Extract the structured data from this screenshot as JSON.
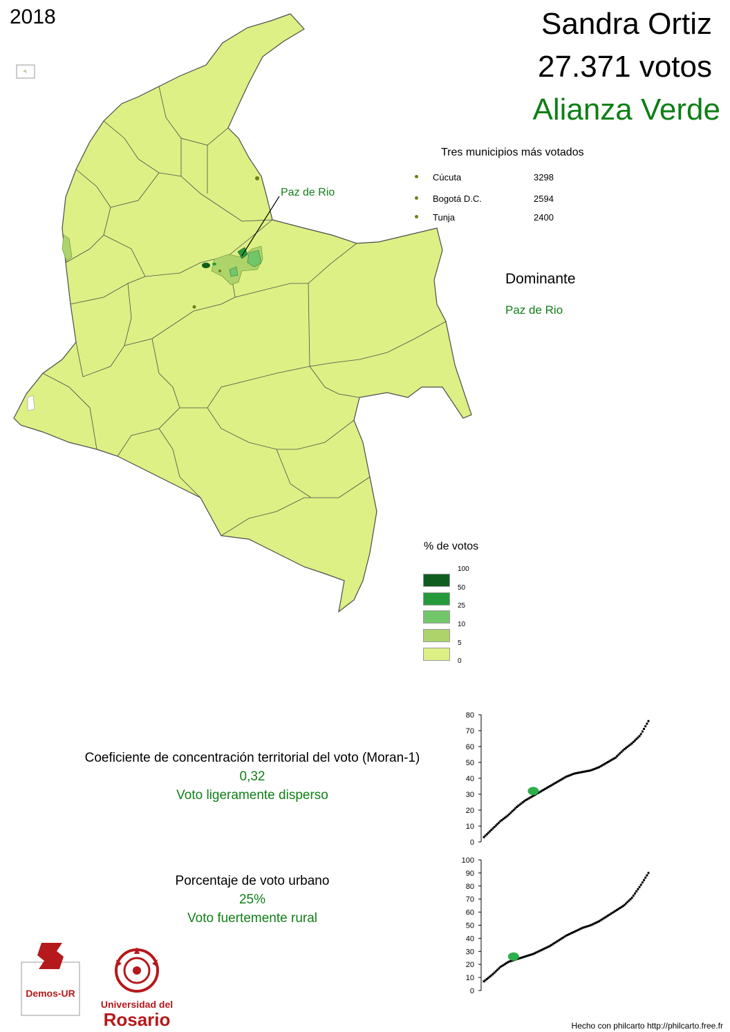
{
  "header": {
    "year": "2018",
    "candidate": "Sandra Ortiz",
    "votes": "27.371 votos",
    "party": "Alianza Verde",
    "party_color": "#0f7f16"
  },
  "top_municipalities": {
    "title": "Tres municipios más votados",
    "items": [
      {
        "name": "Cúcuta",
        "value": "3298"
      },
      {
        "name": "Bogotá D.C.",
        "value": "2594"
      },
      {
        "name": "Tunja",
        "value": "2400"
      }
    ]
  },
  "dominant": {
    "title": "Dominante",
    "value": "Paz de Rio"
  },
  "map": {
    "label": "Paz de Rio",
    "base_color": "#dcf085"
  },
  "legend": {
    "title": "% de votos",
    "ticks": [
      "100",
      "50",
      "25",
      "10",
      "5",
      "0"
    ],
    "colors": [
      "#0f5e1f",
      "#259a3a",
      "#72c66a",
      "#acd46a",
      "#dcf085"
    ]
  },
  "moran": {
    "label": "Coeficiente de concentración territorial del voto (Moran-1)",
    "value": "0,32",
    "interpretation": "Voto ligeramente disperso"
  },
  "urban": {
    "label": "Porcentaje de voto urbano",
    "value": "25%",
    "interpretation": "Voto fuertemente rural"
  },
  "chart_data": [
    {
      "type": "scatter",
      "ylim": [
        0,
        80
      ],
      "yticks": [
        "0",
        "10",
        "20",
        "30",
        "40",
        "50",
        "60",
        "70",
        "80"
      ],
      "x": [
        0,
        0.05,
        0.1,
        0.15,
        0.2,
        0.25,
        0.3,
        0.35,
        0.4,
        0.45,
        0.5,
        0.55,
        0.6,
        0.65,
        0.7,
        0.75,
        0.8,
        0.85,
        0.9,
        0.95,
        1.0
      ],
      "y": [
        3,
        8,
        13,
        17,
        22,
        26,
        29,
        32,
        35,
        38,
        41,
        43,
        44,
        45,
        47,
        50,
        53,
        58,
        62,
        67,
        76
      ],
      "highlight": {
        "x": 0.3,
        "y": 32
      }
    },
    {
      "type": "scatter",
      "ylim": [
        0,
        100
      ],
      "yticks": [
        "0",
        "10",
        "20",
        "30",
        "40",
        "50",
        "60",
        "70",
        "80",
        "90",
        "100"
      ],
      "x": [
        0,
        0.05,
        0.1,
        0.15,
        0.2,
        0.25,
        0.3,
        0.35,
        0.4,
        0.45,
        0.5,
        0.55,
        0.6,
        0.65,
        0.7,
        0.75,
        0.8,
        0.85,
        0.9,
        0.95,
        1.0
      ],
      "y": [
        7,
        12,
        18,
        22,
        24,
        26,
        28,
        31,
        34,
        38,
        42,
        45,
        48,
        50,
        53,
        57,
        61,
        65,
        71,
        80,
        90
      ],
      "highlight": {
        "x": 0.18,
        "y": 26
      }
    }
  ],
  "footer": "Hecho con philcarto http://philcarto.free.fr",
  "logos": {
    "demos": "Demos-UR",
    "university_line1": "Universidad del",
    "university_line2": "Rosario",
    "brand_red": "#b5191b"
  }
}
